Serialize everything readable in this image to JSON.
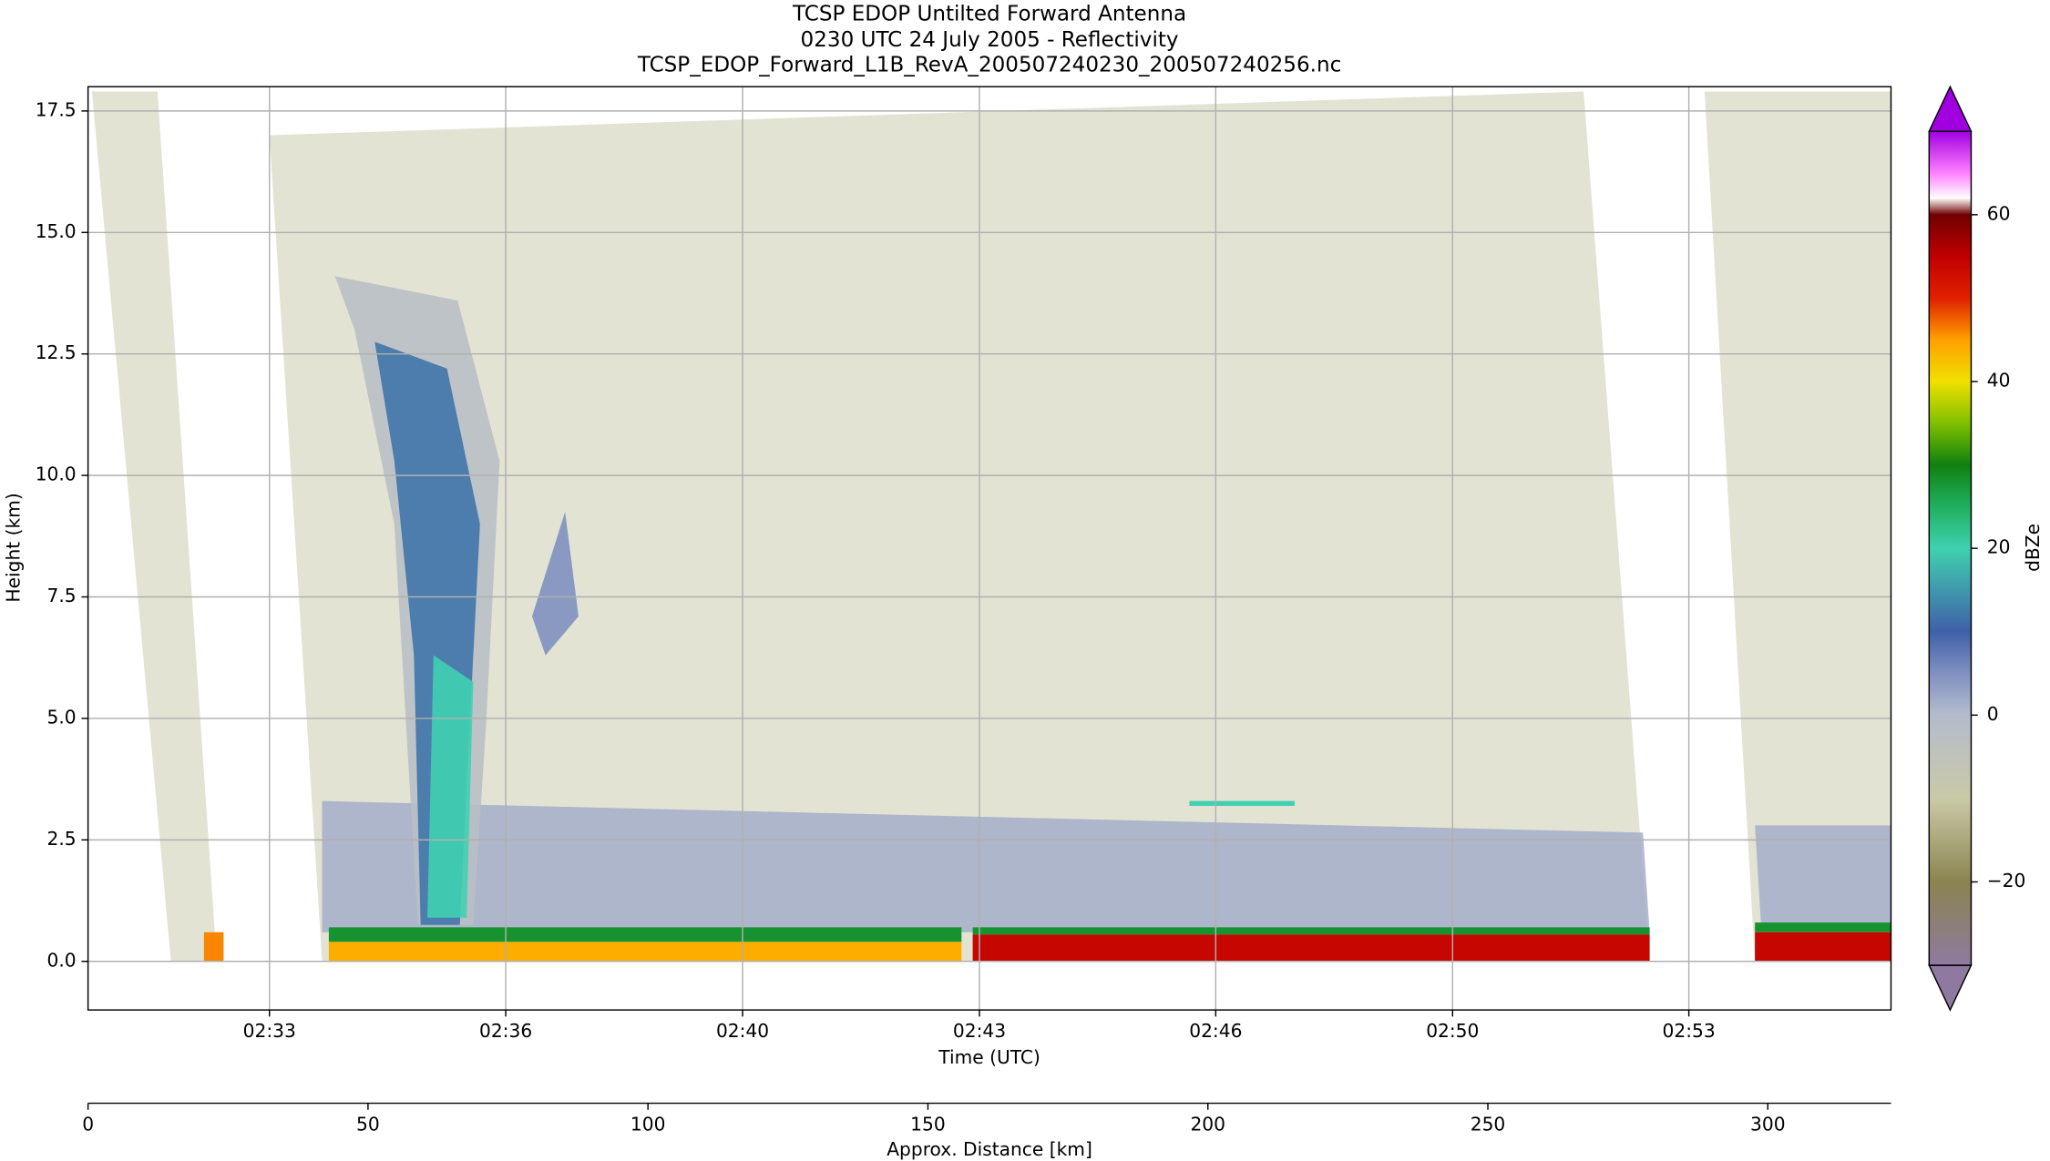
{
  "chart_data": {
    "type": "heatmap",
    "title": [
      "TCSP EDOP Untilted Forward Antenna",
      "0230 UTC 24 July 2005 - Reflectivity",
      "TCSP_EDOP_Forward_L1B_RevA_200507240230_200507240256.nc"
    ],
    "xlabel": "Time (UTC)",
    "ylabel": "Height (km)",
    "x2label": "Approx. Distance [km]",
    "colorbar_label": "dBZe",
    "xlim": [
      0,
      322
    ],
    "ylim": [
      -1,
      18
    ],
    "xticks": [
      {
        "value": 32.4,
        "label": "02:33"
      },
      {
        "value": 74.6,
        "label": "02:36"
      },
      {
        "value": 116.9,
        "label": "02:40"
      },
      {
        "value": 159.2,
        "label": "02:43"
      },
      {
        "value": 201.4,
        "label": "02:46"
      },
      {
        "value": 243.7,
        "label": "02:50"
      },
      {
        "value": 285.9,
        "label": "02:53"
      }
    ],
    "x2ticks": [
      0,
      50,
      100,
      150,
      200,
      250,
      300
    ],
    "yticks": [
      {
        "value": 0,
        "label": "0.0"
      },
      {
        "value": 2.5,
        "label": "2.5"
      },
      {
        "value": 5,
        "label": "5.0"
      },
      {
        "value": 7.5,
        "label": "7.5"
      },
      {
        "value": 10,
        "label": "10.0"
      },
      {
        "value": 12.5,
        "label": "12.5"
      },
      {
        "value": 15,
        "label": "15.0"
      },
      {
        "value": 17.5,
        "label": "17.5"
      }
    ],
    "grid": true,
    "clim": [
      -30,
      70
    ],
    "cticks": [
      {
        "value": -20,
        "label": "−20"
      },
      0,
      20,
      40,
      60
    ],
    "colormap": [
      {
        "value": -30,
        "color": "#8e7aa0"
      },
      {
        "value": -20,
        "color": "#8a8450"
      },
      {
        "value": -10,
        "color": "#cacaa8"
      },
      {
        "value": 0,
        "color": "#b4bccc"
      },
      {
        "value": 5,
        "color": "#8090c0"
      },
      {
        "value": 10,
        "color": "#4060a8"
      },
      {
        "value": 20,
        "color": "#40d0b0"
      },
      {
        "value": 25,
        "color": "#20b060"
      },
      {
        "value": 30,
        "color": "#108010"
      },
      {
        "value": 35,
        "color": "#80c000"
      },
      {
        "value": 40,
        "color": "#f0e000"
      },
      {
        "value": 45,
        "color": "#ffa000"
      },
      {
        "value": 50,
        "color": "#e02000"
      },
      {
        "value": 55,
        "color": "#c00000"
      },
      {
        "value": 60,
        "color": "#700000"
      },
      {
        "value": 62,
        "color": "#ffffff"
      },
      {
        "value": 65,
        "color": "#ff80ff"
      },
      {
        "value": 70,
        "color": "#a000e0"
      }
    ],
    "features": [
      {
        "dbz": -14,
        "opacity": 0.35,
        "x": [
          0.7,
          12.4,
          23.0,
          14.8
        ],
        "y": [
          17.9,
          17.9,
          0,
          0
        ]
      },
      {
        "dbz": -14,
        "opacity": 0.35,
        "x": [
          32.4,
          267.1,
          278.9,
          41.8
        ],
        "y": [
          17.0,
          17.9,
          0,
          0
        ]
      },
      {
        "dbz": -14,
        "opacity": 0.35,
        "x": [
          288.7,
          322,
          322,
          297.7
        ],
        "y": [
          17.9,
          17.9,
          0,
          0
        ]
      },
      {
        "dbz": 2,
        "opacity": 0.8,
        "x": [
          41.8,
          277.7,
          278.9,
          41.8
        ],
        "y": [
          3.3,
          2.65,
          0.6,
          0.6
        ]
      },
      {
        "dbz": 2,
        "opacity": 0.8,
        "x": [
          297.7,
          322,
          322,
          298.8
        ],
        "y": [
          2.8,
          2.8,
          0.75,
          0.75
        ]
      },
      {
        "dbz": -2,
        "opacity": 0.9,
        "x": [
          44.1,
          66.0,
          73.5,
          71.1,
          68.8,
          58.9,
          54.7,
          47.6
        ],
        "y": [
          14.1,
          13.6,
          10.3,
          4.9,
          0.75,
          0.75,
          9.0,
          13.0
        ]
      },
      {
        "dbz": 12,
        "opacity": 0.9,
        "x": [
          51.2,
          64.1,
          70.0,
          67.6,
          66.4,
          59.4,
          58.2,
          54.7
        ],
        "y": [
          12.75,
          12.2,
          9.0,
          3.6,
          0.75,
          0.75,
          6.3,
          10.3
        ]
      },
      {
        "dbz": 20,
        "opacity": 0.9,
        "x": [
          61.7,
          68.8,
          67.6,
          60.6
        ],
        "y": [
          6.3,
          5.75,
          0.9,
          0.9
        ]
      },
      {
        "dbz": 5,
        "opacity": 0.9,
        "x": [
          79.3,
          85.2,
          87.6,
          81.7
        ],
        "y": [
          7.1,
          9.25,
          7.1,
          6.3
        ]
      },
      {
        "dbz": 20,
        "opacity": 1,
        "x": [
          196.7,
          215.5,
          215.5,
          196.7
        ],
        "y": [
          3.3,
          3.3,
          3.2,
          3.2
        ]
      },
      {
        "dbz": 28,
        "opacity": 1,
        "x": [
          43.0,
          156.0,
          156.0,
          43.0
        ],
        "y": [
          0.7,
          0.7,
          0.4,
          0.4
        ]
      },
      {
        "dbz": 44,
        "opacity": 1,
        "x": [
          43.0,
          156.0,
          156.0,
          43.0
        ],
        "y": [
          0.4,
          0.4,
          0,
          0
        ]
      },
      {
        "dbz": 28,
        "opacity": 1,
        "x": [
          158.0,
          278.9,
          278.9,
          158.0
        ],
        "y": [
          0.7,
          0.7,
          0.55,
          0.55
        ]
      },
      {
        "dbz": 54,
        "opacity": 1,
        "x": [
          158.0,
          278.9,
          278.9,
          158.0
        ],
        "y": [
          0.55,
          0.55,
          0,
          0
        ]
      },
      {
        "dbz": 46,
        "opacity": 1,
        "x": [
          20.7,
          24.2,
          24.2,
          20.7
        ],
        "y": [
          0.6,
          0.6,
          0,
          0
        ]
      },
      {
        "dbz": 28,
        "opacity": 1,
        "x": [
          297.7,
          322,
          322,
          297.7
        ],
        "y": [
          0.8,
          0.8,
          0.6,
          0.6
        ]
      },
      {
        "dbz": 54,
        "opacity": 1,
        "x": [
          297.7,
          322,
          322,
          297.7
        ],
        "y": [
          0.6,
          0.6,
          0,
          0
        ]
      }
    ]
  }
}
